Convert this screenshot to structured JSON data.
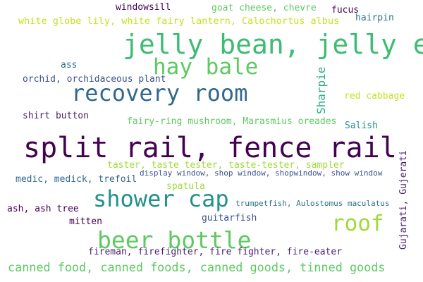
{
  "colors": {
    "background": "#ffffff",
    "dark_purple": "#440154",
    "deep_purple": "#481f70",
    "indigo": "#3b528b",
    "slate_blue": "#31688e",
    "steel_blue": "#2c728e",
    "teal": "#21918c",
    "sea_green": "#28ae80",
    "green": "#3fbc73",
    "light_green": "#5ec962",
    "lime": "#a0da39",
    "yellow_green": "#c8e020"
  },
  "words": {
    "split_rail": "split rail, fence rail",
    "jelly_bean": "jelly bean, jelly egg",
    "recovery_room": "recovery room",
    "hay_bale": "hay bale",
    "shower_cap": "shower cap",
    "beer_bottle": "beer bottle",
    "roof": "roof",
    "canned_food": "canned food, canned foods, canned goods, tinned goods",
    "white_globe_lily": "white globe lily, white fairy lantern, Calochortus albus",
    "goat_cheese": "goat cheese, chevre",
    "windowsill": "windowsill",
    "fucus": "fucus",
    "hairpin": "hairpin",
    "ass": "ass",
    "orchid": "orchid, orchidaceous plant",
    "sharpie": "Sharpie",
    "red_cabbage": "red cabbage",
    "shirt_button": "shirt button",
    "fairy_ring": "fairy-ring mushroom, Marasmius oreades",
    "salish": "Salish",
    "gujarati": "Gujarati, Gujerati",
    "taster": "taster, taste tester, taste-tester, sampler",
    "display_window": "display window, shop window, shopwindow, show window",
    "medic": "medic, medick, trefoil",
    "spatula": "spatula",
    "ash_tree": "ash, ash tree",
    "trumpetfish": "trumpetfish, Aulostomus maculatus",
    "guitarfish": "guitarfish",
    "mitten": "mitten",
    "fireman": "fireman, firefighter, fire fighter, fire-eater"
  }
}
